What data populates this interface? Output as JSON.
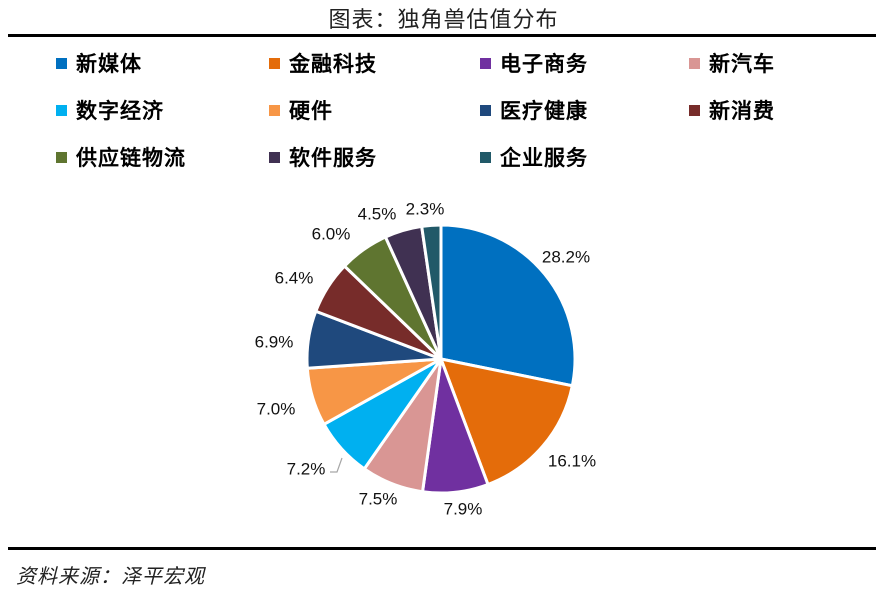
{
  "title": "图表：独角兽估值分布",
  "source": "资料来源：泽平宏观",
  "chart_data": {
    "type": "pie",
    "title": "图表：独角兽估值分布",
    "start_angle_deg": 0,
    "direction": "clockwise",
    "legend_position": "top",
    "categories": [
      "新媒体",
      "金融科技",
      "电子商务",
      "新汽车",
      "数字经济",
      "硬件",
      "医疗健康",
      "新消费",
      "供应链物流",
      "软件服务",
      "企业服务"
    ],
    "values": [
      28.2,
      16.1,
      7.9,
      7.5,
      7.2,
      7.0,
      6.9,
      6.4,
      6.0,
      4.5,
      2.3
    ],
    "labels": [
      "28.2%",
      "16.1%",
      "7.9%",
      "7.5%",
      "7.2%",
      "7.0%",
      "6.9%",
      "6.4%",
      "6.0%",
      "4.5%",
      "2.3%"
    ],
    "colors": [
      "#0070C0",
      "#E46C0A",
      "#7030A0",
      "#D99694",
      "#00B0F0",
      "#F79646",
      "#1F497D",
      "#772C2A",
      "#5F7530",
      "#403152",
      "#215968"
    ],
    "unit": "%"
  },
  "legend": {
    "items": [
      {
        "label": "新媒体",
        "color": "#0070C0"
      },
      {
        "label": "金融科技",
        "color": "#E46C0A"
      },
      {
        "label": "电子商务",
        "color": "#7030A0"
      },
      {
        "label": "新汽车",
        "color": "#D99694"
      },
      {
        "label": "数字经济",
        "color": "#00B0F0"
      },
      {
        "label": "硬件",
        "color": "#F79646"
      },
      {
        "label": "医疗健康",
        "color": "#1F497D"
      },
      {
        "label": "新消费",
        "color": "#772C2A"
      },
      {
        "label": "供应链物流",
        "color": "#5F7530"
      },
      {
        "label": "软件服务",
        "color": "#403152"
      },
      {
        "label": "企业服务",
        "color": "#215968"
      }
    ]
  }
}
